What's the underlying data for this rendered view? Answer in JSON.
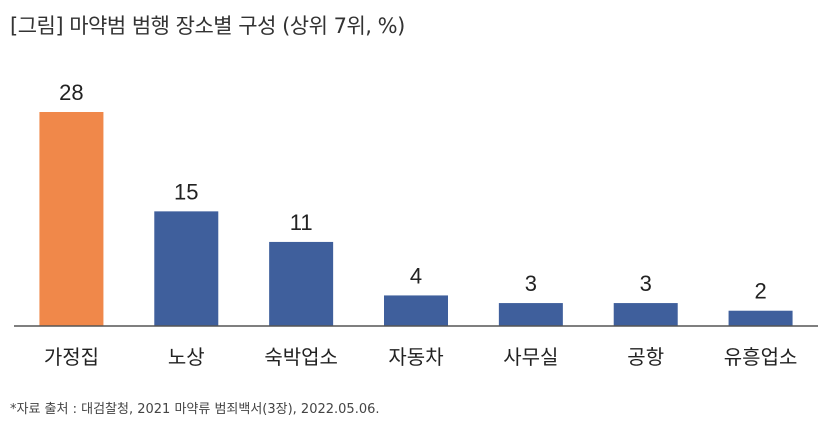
{
  "title": "[그림] 마약범 범행 장소별 구성 (상위 7위, %)",
  "source": "*자료 출처 : 대검찰청, 2021 마약류 범죄백서(3장), 2022.05.06.",
  "colors": {
    "highlight": "#f0884a",
    "bar": "#3f5f9c",
    "axis": "#555555"
  },
  "chart_data": {
    "type": "bar",
    "title": "[그림] 마약범 범행 장소별 구성 (상위 7위, %)",
    "categories": [
      "가정집",
      "노상",
      "숙박업소",
      "자동차",
      "사무실",
      "공항",
      "유흥업소"
    ],
    "values": [
      28,
      15,
      11,
      4,
      3,
      3,
      2
    ],
    "highlight_index": 0,
    "ylim": [
      0,
      28
    ],
    "grid": false,
    "legend": "none"
  }
}
